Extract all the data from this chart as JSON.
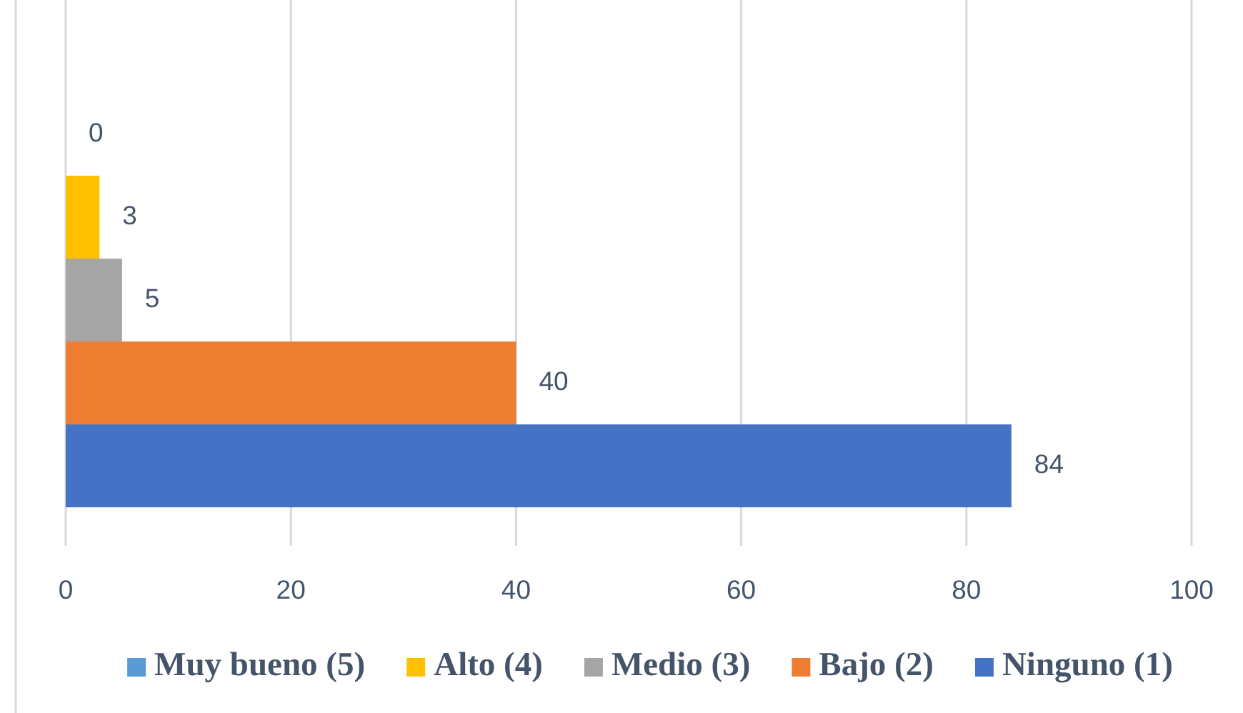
{
  "chart_data": {
    "type": "bar",
    "orientation": "horizontal",
    "categories": [
      null
    ],
    "series": [
      {
        "name": "Muy bueno (5)",
        "color": "#5b9bd5",
        "values": [
          0
        ],
        "value_labels": [
          null
        ]
      },
      {
        "name": "Alto (4)",
        "color": "#ffc000",
        "values": [
          3
        ],
        "value_labels": [
          "3"
        ]
      },
      {
        "name": "Medio (3)",
        "color": "#a5a5a5",
        "values": [
          5
        ],
        "value_labels": [
          "5"
        ]
      },
      {
        "name": "Bajo (2)",
        "color": "#ed7d31",
        "values": [
          40
        ],
        "value_labels": [
          "40"
        ]
      },
      {
        "name": "Ninguno (1)",
        "color": "#4472c4",
        "values": [
          84
        ],
        "value_labels": [
          "84"
        ]
      }
    ],
    "annotations": [
      "0"
    ],
    "xlim": [
      0,
      100
    ],
    "xticks": [
      0,
      20,
      40,
      60,
      80,
      100
    ],
    "grid": "x",
    "legend": "bottom"
  }
}
